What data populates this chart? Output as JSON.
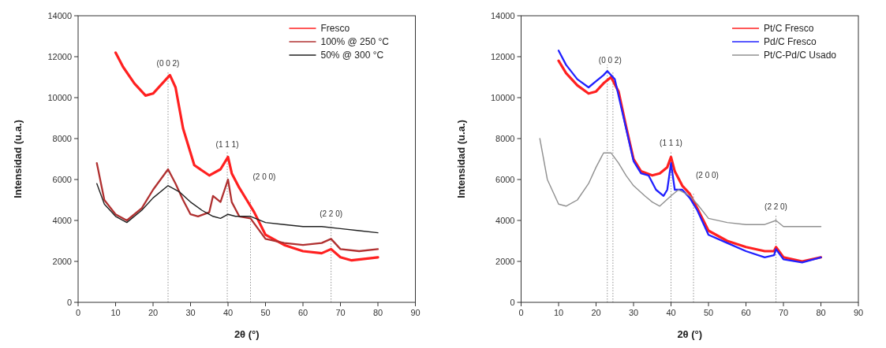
{
  "chart_data": [
    {
      "type": "line",
      "xlabel": "2θ (°)",
      "ylabel": "Intensidad (u.a.)",
      "xlim": [
        0,
        90
      ],
      "ylim": [
        0,
        14000
      ],
      "xticks": [
        0,
        10,
        20,
        30,
        40,
        50,
        60,
        70,
        80,
        90
      ],
      "yticks": [
        0,
        2000,
        4000,
        6000,
        8000,
        10000,
        12000,
        14000
      ],
      "grid": false,
      "legend": "top right",
      "series": [
        {
          "name": "Fresco",
          "color": "#ff2020",
          "x": [
            10,
            12,
            15,
            18,
            20,
            22,
            24.5,
            26,
            28,
            31,
            35,
            38,
            40,
            41,
            43,
            45,
            47,
            50,
            55,
            60,
            65,
            67.5,
            70,
            73,
            80
          ],
          "values": [
            12200,
            11500,
            10700,
            10100,
            10200,
            10600,
            11100,
            10500,
            8500,
            6700,
            6200,
            6500,
            7100,
            6300,
            5600,
            5000,
            4400,
            3300,
            2800,
            2500,
            2400,
            2600,
            2200,
            2050,
            2200
          ]
        },
        {
          "name": "100% @ 250 °C",
          "color": "#b03030",
          "x": [
            5,
            7,
            10,
            13,
            17,
            20,
            22,
            24,
            26,
            28,
            30,
            32,
            35,
            36,
            38,
            40,
            41,
            43,
            46,
            48,
            50,
            55,
            60,
            65,
            67.5,
            70,
            75,
            80
          ],
          "values": [
            6800,
            5000,
            4300,
            4000,
            4600,
            5500,
            6000,
            6500,
            5800,
            5000,
            4300,
            4200,
            4400,
            5200,
            4900,
            6000,
            4900,
            4200,
            4100,
            3600,
            3100,
            2900,
            2800,
            2900,
            3100,
            2600,
            2500,
            2600
          ]
        },
        {
          "name": "50% @ 300 °C",
          "color": "#202020",
          "x": [
            5,
            7,
            10,
            13,
            17,
            20,
            24,
            27,
            30,
            33,
            36,
            38,
            40,
            42,
            46,
            50,
            55,
            60,
            65,
            70,
            75,
            80
          ],
          "values": [
            5800,
            4800,
            4200,
            3900,
            4500,
            5100,
            5700,
            5400,
            4900,
            4500,
            4200,
            4100,
            4300,
            4200,
            4200,
            3900,
            3800,
            3700,
            3700,
            3600,
            3500,
            3400
          ]
        }
      ],
      "ref_lines": [
        {
          "axis": "x",
          "value": 24,
          "line_style": "dotted"
        },
        {
          "axis": "x",
          "value": 39.8,
          "line_style": "dotted"
        },
        {
          "axis": "x",
          "value": 46,
          "line_style": "dotted"
        },
        {
          "axis": "x",
          "value": 67.5,
          "line_style": "dotted"
        }
      ],
      "annotations": [
        "(0 0 2)",
        "(1 1 1)",
        "(2 0 0)",
        "(2 2 0)"
      ]
    },
    {
      "type": "line",
      "xlabel": "2θ (°)",
      "ylabel": "Intensidad (u.a.)",
      "xlim": [
        0,
        90
      ],
      "ylim": [
        0,
        14000
      ],
      "xticks": [
        0,
        10,
        20,
        30,
        40,
        50,
        60,
        70,
        80,
        90
      ],
      "yticks": [
        0,
        2000,
        4000,
        6000,
        8000,
        10000,
        12000,
        14000
      ],
      "grid": false,
      "legend": "top right",
      "series": [
        {
          "name": "Pt/C Fresco",
          "color": "#ff2020",
          "x": [
            10,
            12,
            15,
            18,
            20,
            22,
            24,
            26,
            28,
            30,
            32,
            35,
            37,
            39,
            40,
            41,
            43,
            45,
            47,
            50,
            55,
            60,
            65,
            67.5,
            68,
            70,
            75,
            80
          ],
          "values": [
            11800,
            11200,
            10600,
            10200,
            10300,
            10700,
            11000,
            10300,
            8600,
            7000,
            6400,
            6200,
            6300,
            6600,
            7100,
            6400,
            5700,
            5300,
            4600,
            3500,
            3000,
            2700,
            2500,
            2500,
            2700,
            2200,
            2000,
            2200
          ]
        },
        {
          "name": "Pd/C Fresco",
          "color": "#2020ff",
          "x": [
            10,
            12,
            15,
            18,
            20,
            22,
            23,
            25,
            28,
            30,
            32,
            34,
            36,
            38,
            39,
            40,
            41,
            43,
            45,
            47,
            50,
            55,
            60,
            65,
            67.5,
            68,
            70,
            75,
            80
          ],
          "values": [
            12300,
            11600,
            10900,
            10500,
            10800,
            11100,
            11300,
            10900,
            8500,
            6900,
            6300,
            6200,
            5500,
            5200,
            5500,
            6800,
            5500,
            5500,
            5100,
            4500,
            3300,
            2900,
            2500,
            2200,
            2300,
            2600,
            2100,
            1950,
            2200
          ]
        },
        {
          "name": "Pt/C-Pd/C Usado",
          "color": "#909090",
          "x": [
            5,
            7,
            10,
            12,
            15,
            18,
            20,
            22,
            24,
            26,
            28,
            30,
            33,
            35,
            37,
            40,
            42,
            45,
            47,
            50,
            55,
            60,
            65,
            68,
            70,
            75,
            80
          ],
          "values": [
            8000,
            6000,
            4800,
            4700,
            5000,
            5800,
            6600,
            7300,
            7300,
            6800,
            6200,
            5700,
            5200,
            4900,
            4700,
            5200,
            5500,
            5200,
            4800,
            4100,
            3900,
            3800,
            3800,
            4000,
            3700,
            3700,
            3700
          ]
        }
      ],
      "ref_lines": [
        {
          "axis": "x",
          "value": 23,
          "line_style": "dotted"
        },
        {
          "axis": "x",
          "value": 24.5,
          "line_style": "dotted"
        },
        {
          "axis": "x",
          "value": 40,
          "line_style": "dotted"
        },
        {
          "axis": "x",
          "value": 46,
          "line_style": "dotted"
        },
        {
          "axis": "x",
          "value": 68,
          "line_style": "dotted"
        }
      ],
      "annotations": [
        "(0 0 2)",
        "(1 1 1)",
        "(2 0 0)",
        "(2 2 0)"
      ]
    }
  ]
}
